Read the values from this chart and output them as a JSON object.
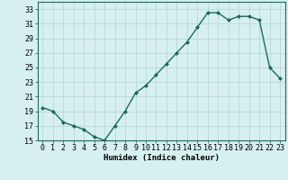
{
  "x": [
    0,
    1,
    2,
    3,
    4,
    5,
    6,
    7,
    8,
    9,
    10,
    11,
    12,
    13,
    14,
    15,
    16,
    17,
    18,
    19,
    20,
    21,
    22,
    23
  ],
  "y": [
    19.5,
    19.0,
    17.5,
    17.0,
    16.5,
    15.5,
    15.0,
    17.0,
    19.0,
    21.5,
    22.5,
    24.0,
    25.5,
    27.0,
    28.5,
    30.5,
    32.5,
    32.5,
    31.5,
    32.0,
    32.0,
    31.5,
    25.0,
    23.5
  ],
  "line_color": "#1a6b5a",
  "marker": "D",
  "marker_size": 2.0,
  "bg_color": "#d6f0ef",
  "grid_color": "#b8d8d5",
  "xlabel": "Humidex (Indice chaleur)",
  "xlim": [
    -0.5,
    23.5
  ],
  "ylim": [
    15,
    34
  ],
  "yticks": [
    15,
    17,
    19,
    21,
    23,
    25,
    27,
    29,
    31,
    33
  ],
  "xticks": [
    0,
    1,
    2,
    3,
    4,
    5,
    6,
    7,
    8,
    9,
    10,
    11,
    12,
    13,
    14,
    15,
    16,
    17,
    18,
    19,
    20,
    21,
    22,
    23
  ],
  "xtick_labels": [
    "0",
    "1",
    "2",
    "3",
    "4",
    "5",
    "6",
    "7",
    "8",
    "9",
    "10",
    "11",
    "12",
    "13",
    "14",
    "15",
    "16",
    "17",
    "18",
    "19",
    "20",
    "21",
    "22",
    "23"
  ],
  "xlabel_fontsize": 6.5,
  "tick_fontsize": 6.0,
  "line_width": 1.0
}
